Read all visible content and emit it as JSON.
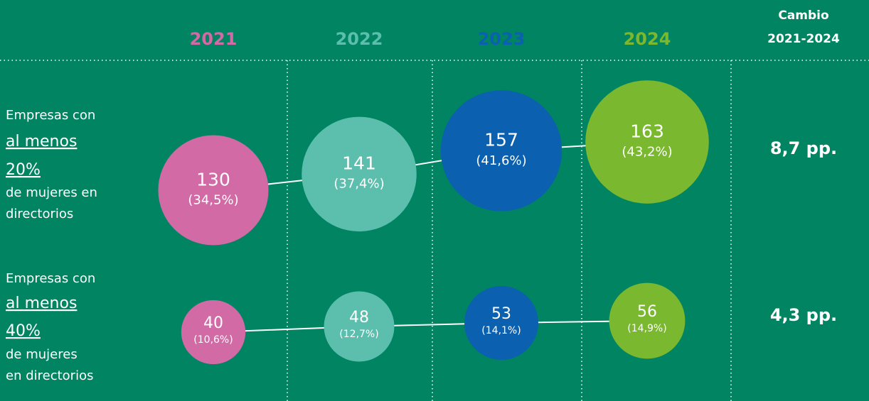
{
  "chart_data": {
    "type": "bubble",
    "categories": [
      "2021",
      "2022",
      "2023",
      "2024"
    ],
    "category_colors": [
      "#d26aa6",
      "#5cbfad",
      "#0b60b0",
      "#7ab82f"
    ],
    "change_header": [
      "Cambio",
      "2021-2024"
    ],
    "series": [
      {
        "label_intro": "Empresas con",
        "label_emphasis": [
          "al menos",
          "20%"
        ],
        "label_outro": [
          "de mujeres en",
          "directorios"
        ],
        "values": [
          130,
          141,
          157,
          163
        ],
        "percents": [
          34.5,
          37.4,
          41.6,
          43.2
        ],
        "percent_labels": [
          "(34,5%)",
          "(37,4%)",
          "(41,6%)",
          "(43,2%)"
        ],
        "change_label": "8,7 pp."
      },
      {
        "label_intro": "Empresas con",
        "label_emphasis": [
          "al menos",
          "40%"
        ],
        "label_outro": [
          "de mujeres",
          "en directorios"
        ],
        "values": [
          40,
          48,
          53,
          56
        ],
        "percents": [
          10.6,
          12.7,
          14.1,
          14.9
        ],
        "percent_labels": [
          "(10,6%)",
          "(12,7%)",
          "(14,1%)",
          "(14,9%)"
        ],
        "change_label": "4,3 pp."
      }
    ]
  }
}
